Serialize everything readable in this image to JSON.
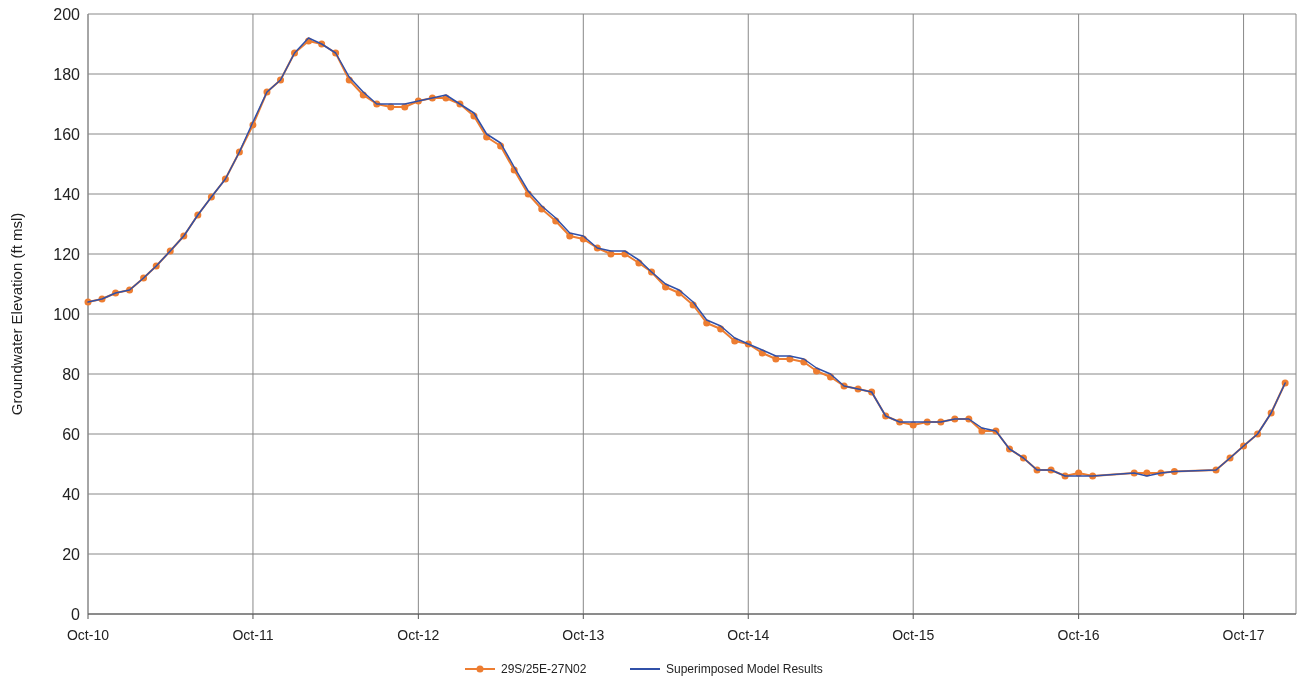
{
  "chart_data": {
    "type": "line",
    "ylabel": "Groundwater Elevation (ft msl)",
    "x": [
      "2010-10",
      "2010-11",
      "2010-12",
      "2011-01",
      "2011-02",
      "2011-03",
      "2011-04",
      "2011-05",
      "2011-06",
      "2011-07",
      "2011-08",
      "2011-09",
      "2011-10",
      "2011-11",
      "2011-12",
      "2012-01",
      "2012-02",
      "2012-03",
      "2012-04",
      "2012-05",
      "2012-06",
      "2012-07",
      "2012-08",
      "2012-09",
      "2012-10",
      "2012-11",
      "2012-12",
      "2013-01",
      "2013-02",
      "2013-03",
      "2013-04",
      "2013-05",
      "2013-06",
      "2013-07",
      "2013-08",
      "2013-09",
      "2013-10",
      "2013-11",
      "2013-12",
      "2014-01",
      "2014-02",
      "2014-03",
      "2014-04",
      "2014-05",
      "2014-06",
      "2014-07",
      "2014-08",
      "2014-09",
      "2014-10",
      "2014-11",
      "2014-12",
      "2015-01",
      "2015-02",
      "2015-03",
      "2015-04",
      "2015-05",
      "2015-06",
      "2015-07",
      "2015-08",
      "2015-09",
      "2015-10",
      "2015-11",
      "2015-12",
      "2016-01",
      "2016-02",
      "2016-03",
      "2016-04",
      "2016-05",
      "2016-06",
      "2016-07",
      "2016-08",
      "2016-09",
      "2016-10",
      "2016-11",
      "2017-02",
      "2017-03",
      "2017-04",
      "2017-05",
      "2017-08",
      "2017-09",
      "2017-10",
      "2017-11",
      "2017-12",
      "2018-01"
    ],
    "series": [
      {
        "name": "29S/25E-27N02",
        "color": "#ed7d31",
        "marker": "circle",
        "values": [
          104,
          105,
          107,
          108,
          112,
          116,
          121,
          126,
          133,
          139,
          145,
          154,
          163,
          174,
          178,
          187,
          191,
          190,
          187,
          178,
          173,
          170,
          169,
          169,
          171,
          172,
          172,
          170,
          166,
          159,
          156,
          148,
          140,
          135,
          131,
          126,
          125,
          122,
          120,
          120,
          117,
          114,
          109,
          107,
          103,
          97,
          95,
          91,
          90,
          87,
          85,
          85,
          84,
          81,
          79,
          76,
          75,
          74,
          66,
          64,
          63,
          64,
          64,
          65,
          65,
          61,
          61,
          55,
          52,
          48,
          48,
          46,
          47,
          46,
          47,
          47,
          47,
          47.5,
          48,
          52,
          56,
          60,
          67,
          77
        ]
      },
      {
        "name": "Superimposed Model Results",
        "color": "#3050a8",
        "marker": "none",
        "values": [
          104,
          105,
          107,
          108,
          112,
          116,
          121,
          126,
          133,
          139,
          145,
          154,
          164,
          174,
          178,
          187,
          192,
          190,
          187,
          179,
          174,
          170,
          170,
          170,
          171,
          172,
          173,
          170,
          167,
          160,
          157,
          149,
          141,
          136,
          132,
          127,
          126,
          122,
          121,
          121,
          118,
          114,
          110,
          108,
          104,
          98,
          96,
          92,
          90,
          88,
          86,
          86,
          85,
          82,
          80,
          76,
          75,
          74,
          66,
          64,
          64,
          64,
          64,
          65,
          65,
          62,
          61,
          55,
          52,
          48,
          48,
          46,
          46,
          46,
          47,
          46,
          47,
          47.5,
          48,
          52,
          56,
          60,
          67,
          77
        ]
      }
    ],
    "xlim": [
      "2010-10-01",
      "2018-01-25"
    ],
    "xticks": [
      {
        "value": "2010-10-01",
        "label": "Oct-10"
      },
      {
        "value": "2011-10-01",
        "label": "Oct-11"
      },
      {
        "value": "2012-10-01",
        "label": "Oct-12"
      },
      {
        "value": "2013-10-01",
        "label": "Oct-13"
      },
      {
        "value": "2014-10-01",
        "label": "Oct-14"
      },
      {
        "value": "2015-10-01",
        "label": "Oct-15"
      },
      {
        "value": "2016-10-01",
        "label": "Oct-16"
      },
      {
        "value": "2017-10-01",
        "label": "Oct-17"
      }
    ],
    "ylim": [
      0,
      200
    ],
    "yticks": [
      0,
      20,
      40,
      60,
      80,
      100,
      120,
      140,
      160,
      180,
      200
    ],
    "grid": true,
    "legend": "bottom",
    "line_style": "solid"
  }
}
